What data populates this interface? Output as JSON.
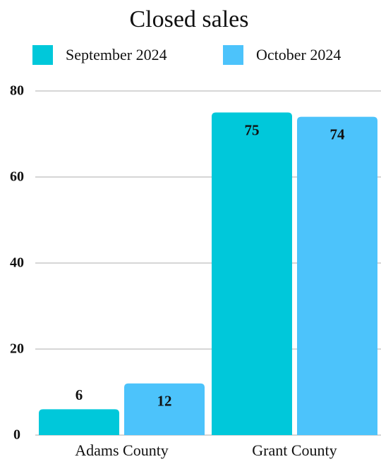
{
  "chart_data": {
    "type": "bar",
    "title": "Closed sales",
    "categories": [
      "Adams County",
      "Grant County"
    ],
    "series": [
      {
        "name": "September 2024",
        "color": "#00c8da",
        "values": [
          6,
          75
        ]
      },
      {
        "name": "October 2024",
        "color": "#4cc3fb",
        "values": [
          12,
          74
        ]
      }
    ],
    "ylim": [
      0,
      80
    ],
    "yticks": [
      0,
      20,
      40,
      60,
      80
    ],
    "grid": true,
    "legend": "top"
  }
}
